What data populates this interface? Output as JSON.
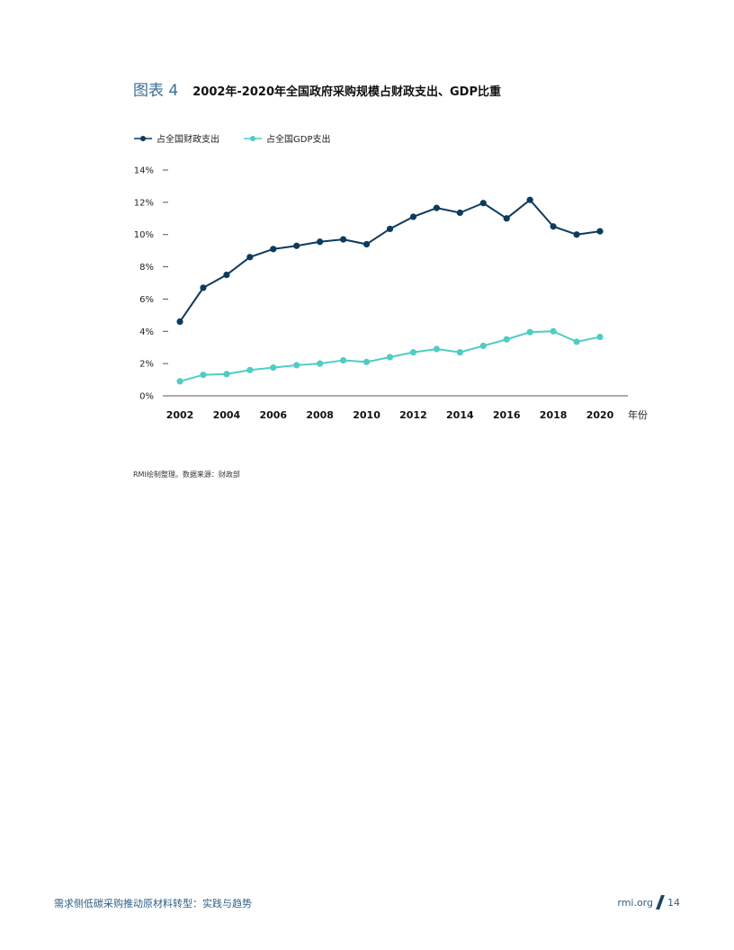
{
  "figure": {
    "label": "图表 4",
    "title": "2002年-2020年全国政府采购规模占财政支出、GDP比重"
  },
  "source_note": "RMI绘制整理。数据来源：财政部",
  "footer": {
    "report_title": "需求侧低碳采购推动原材料转型：实践与趋势",
    "site": "rmi.org",
    "page_number": "14"
  },
  "chart_data": {
    "type": "line",
    "x": [
      2002,
      2003,
      2004,
      2005,
      2006,
      2007,
      2008,
      2009,
      2010,
      2011,
      2012,
      2013,
      2014,
      2015,
      2016,
      2017,
      2018,
      2019,
      2020
    ],
    "x_tick_labels": [
      "2002",
      "2004",
      "2006",
      "2008",
      "2010",
      "2012",
      "2014",
      "2016",
      "2018",
      "2020"
    ],
    "xlabel": "年份",
    "ylabel": "",
    "ylim": [
      0,
      14
    ],
    "y_tick_labels": [
      "0%",
      "2%",
      "4%",
      "6%",
      "8%",
      "10%",
      "12%",
      "14%"
    ],
    "grid": false,
    "legend_position": "top-left",
    "series": [
      {
        "name": "占全国财政支出",
        "color": "#0d3b5e",
        "values": [
          4.6,
          6.7,
          7.5,
          8.6,
          9.1,
          9.3,
          9.55,
          9.7,
          9.4,
          10.35,
          11.1,
          11.65,
          11.35,
          11.95,
          11.0,
          12.15,
          10.5,
          10.0,
          10.2
        ]
      },
      {
        "name": "占全国GDP支出",
        "color": "#4ecdc4",
        "values": [
          0.9,
          1.3,
          1.35,
          1.6,
          1.75,
          1.9,
          2.0,
          2.2,
          2.1,
          2.4,
          2.7,
          2.9,
          2.7,
          3.1,
          3.5,
          3.95,
          4.0,
          3.35,
          3.65
        ]
      }
    ]
  }
}
